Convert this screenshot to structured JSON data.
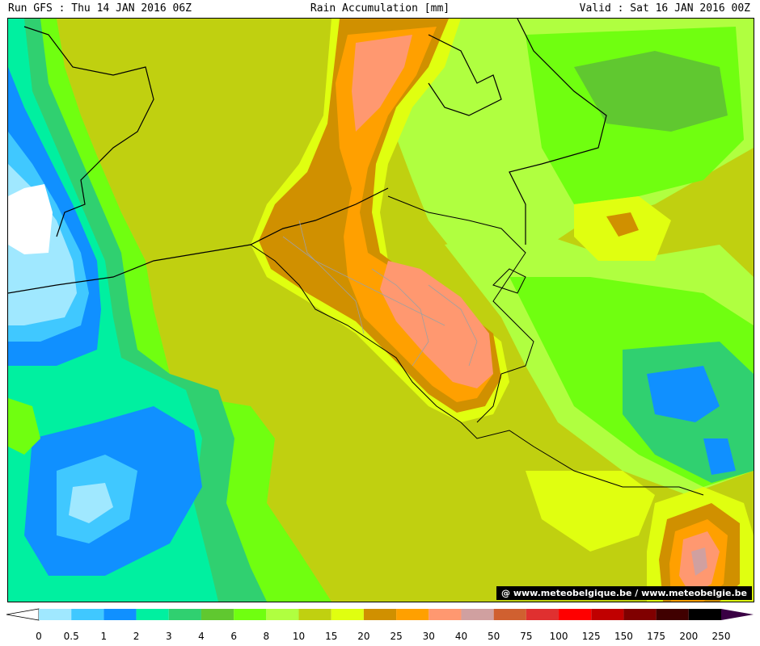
{
  "header": {
    "run": "Run GFS : Thu 14 JAN 2016 06Z",
    "title": "Rain Accumulation [mm]",
    "valid": "Valid : Sat 16 JAN 2016 00Z"
  },
  "credit": "@ www.meteobelgique.be / www.meteobelgie.be",
  "colors": {
    "below_min": "#ffffff",
    "above_max": "#3a0044"
  },
  "legend": {
    "ticks": [
      "0",
      "0.5",
      "1",
      "2",
      "3",
      "4",
      "6",
      "8",
      "10",
      "15",
      "20",
      "25",
      "30",
      "40",
      "50",
      "75",
      "100",
      "125",
      "150",
      "175",
      "200",
      "250"
    ],
    "bins": [
      {
        "from": "0",
        "to": "0.5",
        "color": "#a0e8ff"
      },
      {
        "from": "0.5",
        "to": "1",
        "color": "#40c8ff"
      },
      {
        "from": "1",
        "to": "2",
        "color": "#1090ff"
      },
      {
        "from": "2",
        "to": "3",
        "color": "#00f0a0"
      },
      {
        "from": "3",
        "to": "4",
        "color": "#30d070"
      },
      {
        "from": "4",
        "to": "6",
        "color": "#60c830"
      },
      {
        "from": "6",
        "to": "8",
        "color": "#70ff10"
      },
      {
        "from": "8",
        "to": "10",
        "color": "#b0ff40"
      },
      {
        "from": "10",
        "to": "15",
        "color": "#c0d010"
      },
      {
        "from": "15",
        "to": "20",
        "color": "#e0ff10"
      },
      {
        "from": "20",
        "to": "25",
        "color": "#d09000"
      },
      {
        "from": "25",
        "to": "30",
        "color": "#ffa000"
      },
      {
        "from": "30",
        "to": "40",
        "color": "#ff9870"
      },
      {
        "from": "40",
        "to": "50",
        "color": "#d0a0a0"
      },
      {
        "from": "50",
        "to": "75",
        "color": "#d06030"
      },
      {
        "from": "75",
        "to": "100",
        "color": "#e03030"
      },
      {
        "from": "100",
        "to": "125",
        "color": "#ff0000"
      },
      {
        "from": "125",
        "to": "150",
        "color": "#c00000"
      },
      {
        "from": "150",
        "to": "175",
        "color": "#800000"
      },
      {
        "from": "175",
        "to": "200",
        "color": "#400000"
      },
      {
        "from": "200",
        "to": "250",
        "color": "#000000"
      }
    ]
  }
}
